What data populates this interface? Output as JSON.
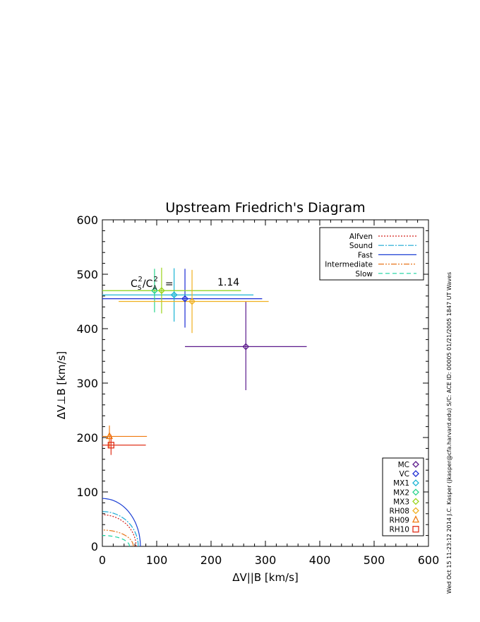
{
  "chart_data": {
    "type": "scatter",
    "title": "Upstream Friedrich's Diagram",
    "xlabel": "ΔV||B [km/s]",
    "ylabel": "ΔV⊥B [km/s]",
    "xlim": [
      0,
      600
    ],
    "ylim": [
      0,
      600
    ],
    "xticks": [
      "0",
      "100",
      "200",
      "300",
      "400",
      "500",
      "600"
    ],
    "yticks": [
      "0",
      "100",
      "200",
      "300",
      "400",
      "500",
      "600"
    ],
    "grid": false,
    "ratio_label": {
      "lhs_num": "C",
      "lhs_sub1": "S",
      "sup1": "2",
      "slash": "/",
      "lhs_den": "C",
      "lhs_sub2": "A",
      "sup2": "2",
      "eq": "=",
      "value": "1.14"
    },
    "wave_legend": {
      "placement": "top-right",
      "entries": [
        {
          "label": "Alfven",
          "color": "#d4201a",
          "dash": "2,2"
        },
        {
          "label": "Sound",
          "color": "#1aa9d4",
          "dash": "8,2,2,2"
        },
        {
          "label": "Fast",
          "color": "#1a3ed4",
          "dash": ""
        },
        {
          "label": "Intermediate",
          "color": "#e8751a",
          "dash": "8,2,2,2,2,2"
        },
        {
          "label": "Slow",
          "color": "#1ad4a0",
          "dash": "6,4"
        }
      ]
    },
    "method_legend": {
      "placement": "bottom-right",
      "entries": [
        {
          "label": "MC",
          "color": "#5b1a8c",
          "marker": "diamond"
        },
        {
          "label": "VC",
          "color": "#1a2ad4",
          "marker": "diamond"
        },
        {
          "label": "MX1",
          "color": "#1ab4d4",
          "marker": "diamond"
        },
        {
          "label": "MX2",
          "color": "#28d48c",
          "marker": "diamond"
        },
        {
          "label": "MX3",
          "color": "#9ad41a",
          "marker": "diamond"
        },
        {
          "label": "RH08",
          "color": "#f0b020",
          "marker": "diamond"
        },
        {
          "label": "RH09",
          "color": "#f07a10",
          "marker": "triangle"
        },
        {
          "label": "RH10",
          "color": "#e0301a",
          "marker": "square"
        }
      ]
    },
    "points": [
      {
        "name": "MC",
        "x": 264,
        "y": 367,
        "xerr": [
          152,
          376
        ],
        "yerr": [
          287,
          450
        ],
        "color": "#5b1a8c",
        "marker": "diamond"
      },
      {
        "name": "VC",
        "x": 152,
        "y": 455,
        "xerr": [
          0,
          294
        ],
        "yerr": [
          402,
          510
        ],
        "color": "#1a2ad4",
        "marker": "diamond"
      },
      {
        "name": "MX1",
        "x": 132,
        "y": 462,
        "xerr": [
          0,
          278
        ],
        "yerr": [
          413,
          511
        ],
        "color": "#1ab4d4",
        "marker": "diamond"
      },
      {
        "name": "MX2",
        "x": 96,
        "y": 470,
        "xerr": [
          0,
          255
        ],
        "yerr": [
          430,
          510
        ],
        "color": "#28d48c",
        "marker": "diamond"
      },
      {
        "name": "MX3",
        "x": 109,
        "y": 470,
        "xerr": [
          0,
          255
        ],
        "yerr": [
          428,
          512
        ],
        "color": "#9ad41a",
        "marker": "diamond"
      },
      {
        "name": "RH08",
        "x": 165,
        "y": 450,
        "xerr": [
          30,
          306
        ],
        "yerr": [
          392,
          508
        ],
        "color": "#f0b020",
        "marker": "diamond"
      },
      {
        "name": "RH09",
        "x": 13,
        "y": 202,
        "xerr": [
          0,
          82
        ],
        "yerr": [
          182,
          222
        ],
        "color": "#f07a10",
        "marker": "triangle"
      },
      {
        "name": "RH10",
        "x": 16,
        "y": 186,
        "xerr": [
          0,
          80
        ],
        "yerr": [
          168,
          205
        ],
        "color": "#e0301a",
        "marker": "square"
      }
    ],
    "curves": [
      {
        "name": "Fast",
        "color": "#1a3ed4",
        "dash": "",
        "vx": 70,
        "vy": 88
      },
      {
        "name": "Sound",
        "color": "#1aa9d4",
        "dash": "8,2,2,2",
        "vx": 66,
        "vy": 64
      },
      {
        "name": "Alfven",
        "color": "#d4201a",
        "dash": "2,2",
        "vx": 62,
        "vy": 58
      },
      {
        "name": "Intermediate",
        "color": "#e8751a",
        "dash": "8,2,2,2,2,2",
        "vx": 57,
        "vy": 30
      },
      {
        "name": "Slow",
        "color": "#1ad4a0",
        "dash": "6,4",
        "vx": 50,
        "vy": 20
      }
    ]
  },
  "side_note": "Wed Oct 15 11:23:12 2014   J.C. Kasper (jkasper@cfa.harvard.edu)   S/C: ACE ID: 00005 01/21/2005   1847 UT Waves"
}
